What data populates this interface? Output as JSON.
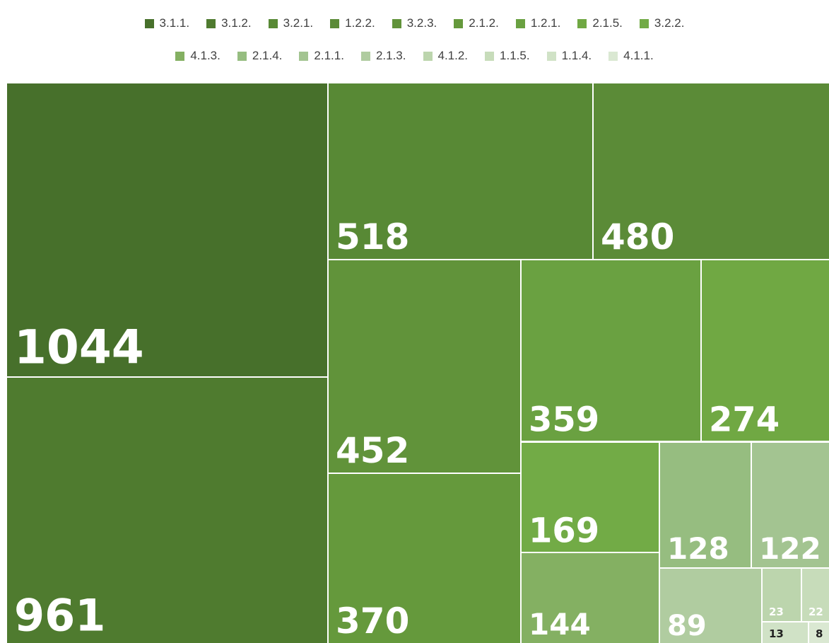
{
  "chart_data": {
    "type": "treemap",
    "categories": [
      "3.1.1.",
      "3.1.2.",
      "3.2.1.",
      "1.2.2.",
      "3.2.3.",
      "2.1.2.",
      "1.2.1.",
      "2.1.5.",
      "3.2.2.",
      "4.1.3.",
      "2.1.4.",
      "2.1.1.",
      "2.1.3.",
      "4.1.2.",
      "1.1.5.",
      "1.1.4.",
      "4.1.1."
    ],
    "values": [
      1044,
      961,
      518,
      480,
      452,
      370,
      359,
      274,
      169,
      144,
      128,
      122,
      89,
      23,
      22,
      13,
      8
    ],
    "colors": [
      "#47702b",
      "#4f7b2f",
      "#588935",
      "#5b8b37",
      "#61933a",
      "#65993c",
      "#6aa141",
      "#70a843",
      "#72ab46",
      "#84b062",
      "#96bd80",
      "#a3c491",
      "#b0cca0",
      "#bcd5ad",
      "#c7dcba",
      "#d0e2c6",
      "#dae8d2"
    ]
  }
}
